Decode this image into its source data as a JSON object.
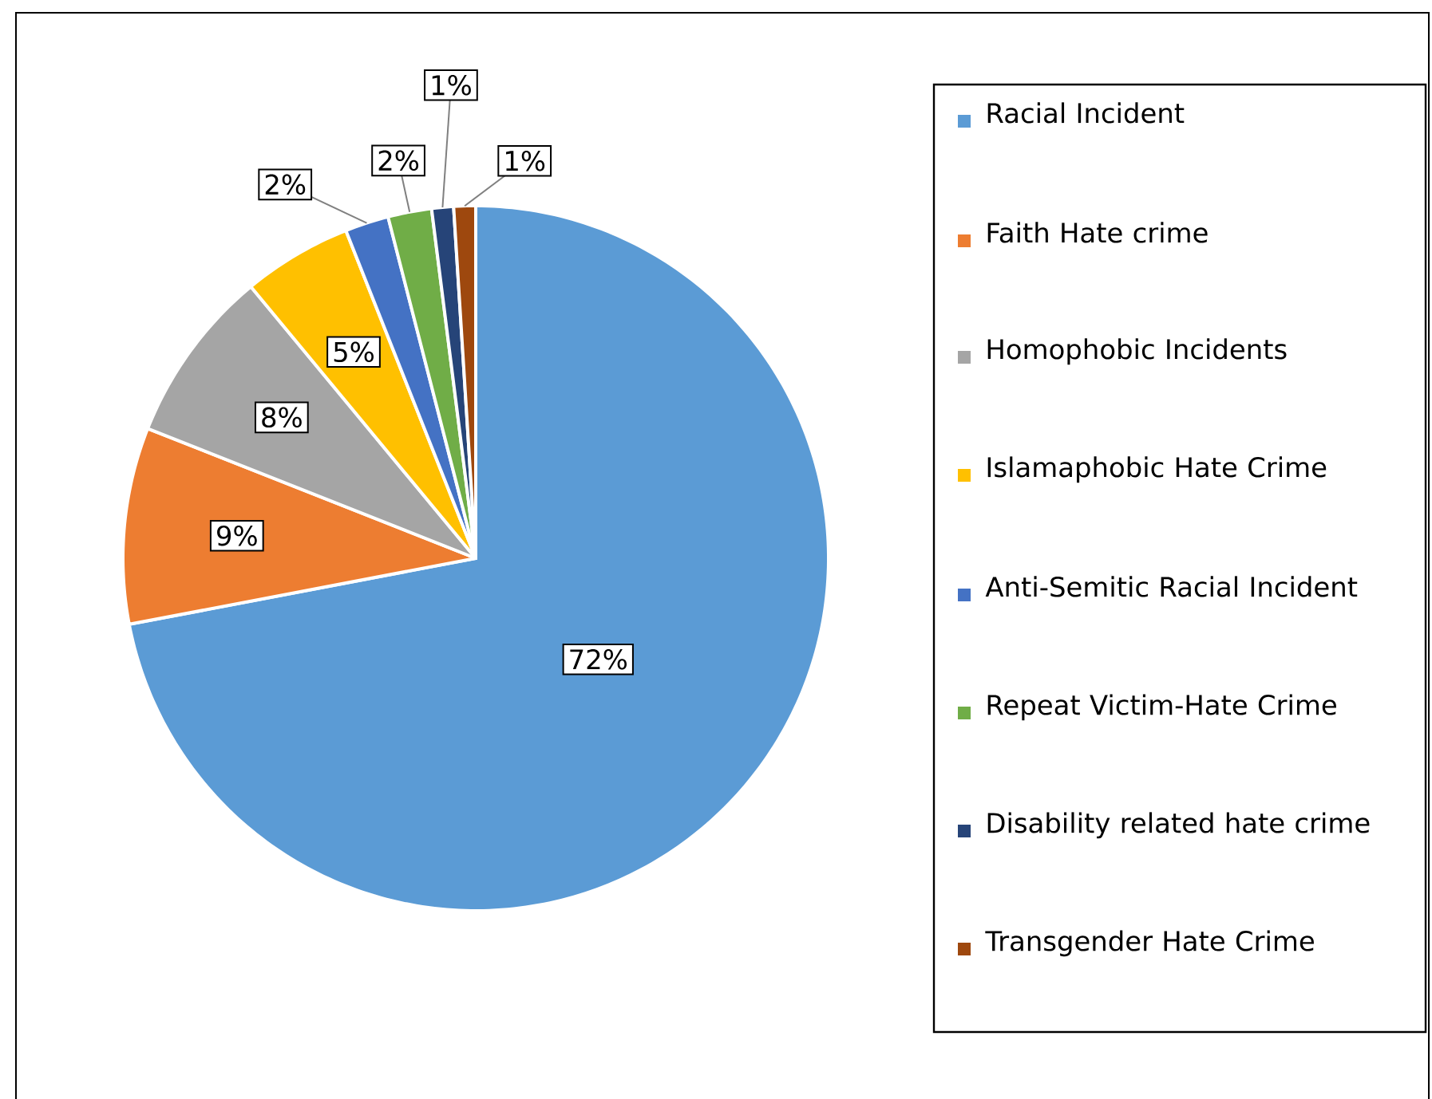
{
  "chart_data": {
    "type": "pie",
    "categories": [
      "Racial Incident",
      "Faith Hate crime",
      "Homophobic Incidents",
      "Islamaphobic Hate Crime",
      "Anti-Semitic Racial Incident",
      "Repeat Victim-Hate Crime",
      "Disability related hate crime",
      "Transgender Hate Crime"
    ],
    "values": [
      72,
      9,
      8,
      5,
      2,
      2,
      1,
      1
    ],
    "colors": [
      "#5b9bd5",
      "#ed7d31",
      "#a5a5a5",
      "#ffc000",
      "#4472c4",
      "#70ad47",
      "#264478",
      "#9e480e"
    ],
    "value_labels": [
      "72%",
      "9%",
      "8%",
      "5%",
      "2%",
      "2%",
      "1%",
      "1%"
    ],
    "legend": "right"
  }
}
